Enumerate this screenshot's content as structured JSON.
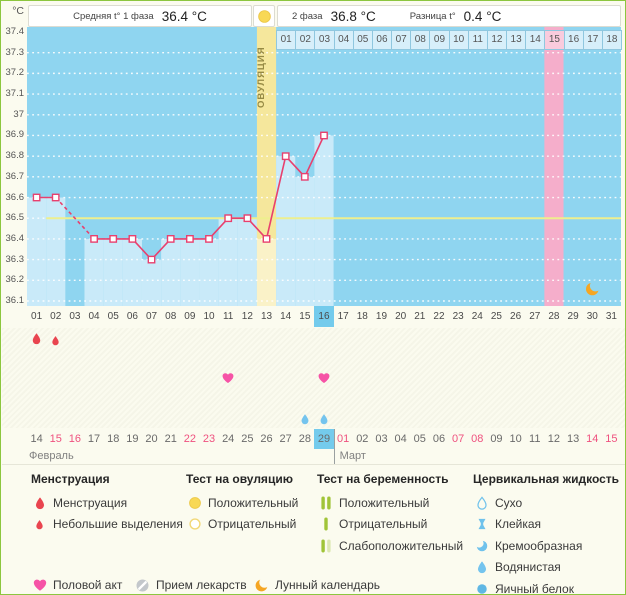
{
  "unit_label": "°C",
  "header": {
    "avg_label": "Средняя t° 1 фаза",
    "avg_value": "36.4 °C",
    "phase2_label": "2 фаза",
    "phase2_value": "36.8 °C",
    "diff_label": "Разница t°",
    "diff_value": "0.4 °C"
  },
  "chart_data": {
    "type": "line",
    "title": "Basal body temperature chart",
    "ylabel": "°C",
    "ylim": [
      36.1,
      37.4
    ],
    "yticks": [
      "37.4",
      "37.3",
      "37.2",
      "37.1",
      "37",
      "36.9",
      "36.8",
      "36.7",
      "36.6",
      "36.5",
      "36.4",
      "36.3",
      "36.2",
      "36.1"
    ],
    "x_days": [
      "01",
      "02",
      "03",
      "04",
      "05",
      "06",
      "07",
      "08",
      "09",
      "10",
      "11",
      "12",
      "13",
      "14",
      "15",
      "16",
      "17",
      "18",
      "19",
      "20",
      "21",
      "22",
      "23",
      "24",
      "25",
      "26",
      "27",
      "28",
      "29",
      "30",
      "31"
    ],
    "temperatures": [
      36.6,
      36.6,
      null,
      36.4,
      36.4,
      36.4,
      36.3,
      36.4,
      36.4,
      36.4,
      36.5,
      36.5,
      36.4,
      36.8,
      36.7,
      36.9,
      null,
      null,
      null,
      null,
      null,
      null,
      null,
      null,
      null,
      null,
      null,
      null,
      null,
      null,
      null
    ],
    "coverline": 36.5,
    "ovulation_day": 13,
    "ovulation_label": "ОВУЛЯЦИЯ",
    "expected_period_day": 28,
    "current_day": 16,
    "moon_calendar_day": 30,
    "phase2_cycle_days": [
      "01",
      "02",
      "03",
      "04",
      "05",
      "06",
      "07",
      "08",
      "09",
      "10",
      "11",
      "12",
      "13",
      "14",
      "15",
      "16",
      "17",
      "18"
    ],
    "phase2_highlight_label": "15",
    "grid": "dotted-white",
    "legend_position": "bottom"
  },
  "events": {
    "menstruation_days": [
      1
    ],
    "spotting_days": [
      2
    ],
    "intercourse_days": [
      11,
      16
    ],
    "watery_fluid_days": [
      15,
      16
    ]
  },
  "calendar": {
    "months": [
      {
        "name": "Февраль",
        "start_day": 1,
        "dates": [
          "14",
          "15",
          "16",
          "17",
          "18",
          "19",
          "20",
          "21",
          "22",
          "23",
          "24",
          "25",
          "26",
          "27",
          "28",
          "29"
        ],
        "red_dates": [
          "15",
          "16",
          "22",
          "23"
        ],
        "highlight_date": "29"
      },
      {
        "name": "Март",
        "start_day": 17,
        "dates": [
          "01",
          "02",
          "03",
          "04",
          "05",
          "06",
          "07",
          "08",
          "09",
          "10",
          "11",
          "12",
          "13",
          "14",
          "15"
        ],
        "red_dates": [
          "01",
          "07",
          "08",
          "14",
          "15"
        ],
        "highlight_date": ""
      }
    ]
  },
  "legend": {
    "sections": [
      {
        "title": "Менструация",
        "items": [
          {
            "icon": "menstruation-drop",
            "label": "Менструация"
          },
          {
            "icon": "spotting-drop",
            "label": "Небольшие выделения"
          }
        ]
      },
      {
        "title": "Тест на овуляцию",
        "items": [
          {
            "icon": "ovulation-positive",
            "label": "Положительный"
          },
          {
            "icon": "ovulation-negative",
            "label": "Отрицательный"
          }
        ]
      },
      {
        "title": "Тест на беременность",
        "items": [
          {
            "icon": "pregnancy-positive",
            "label": "Положительный"
          },
          {
            "icon": "pregnancy-negative",
            "label": "Отрицательный"
          },
          {
            "icon": "pregnancy-weak-positive",
            "label": "Слабоположительный"
          }
        ]
      },
      {
        "title": "Цервикальная жидкость",
        "items": [
          {
            "icon": "cf-dry",
            "label": "Сухо"
          },
          {
            "icon": "cf-sticky",
            "label": "Клейкая"
          },
          {
            "icon": "cf-creamy",
            "label": "Кремообразная"
          },
          {
            "icon": "cf-watery",
            "label": "Водянистая"
          },
          {
            "icon": "cf-eggwhite",
            "label": "Яичный белок"
          }
        ]
      }
    ],
    "footer_items": [
      {
        "icon": "intercourse-heart",
        "label": "Половой акт"
      },
      {
        "icon": "medication-pill",
        "label": "Прием лекарств"
      },
      {
        "icon": "moon",
        "label": "Лунный календарь"
      }
    ]
  },
  "colors": {
    "page_border": "#8CC63E",
    "page_bg": "#FBFBEF",
    "chart_bg": "#8FD5F0",
    "recorded_fill": "#C9EAF9",
    "ovulation_column": "#F5E79C",
    "ovulation_column_fill": "#FAF2C8",
    "expected_period_column": "#F5AECB",
    "phase2_cell_bg": "#D7EFFA",
    "phase2_cell_pink": "#F9CBDD",
    "coverline": "#EEEF8E",
    "temp_line": "#E8406E",
    "current_day_highlight": "#74CBEC",
    "weekend_date": "#EF517F",
    "moon": "#F5A623",
    "heart": "#F653A6",
    "menstruation": "#E9454F",
    "cervical_blue": "#6FC2EC",
    "pregnancy_green": "#A0C438"
  }
}
